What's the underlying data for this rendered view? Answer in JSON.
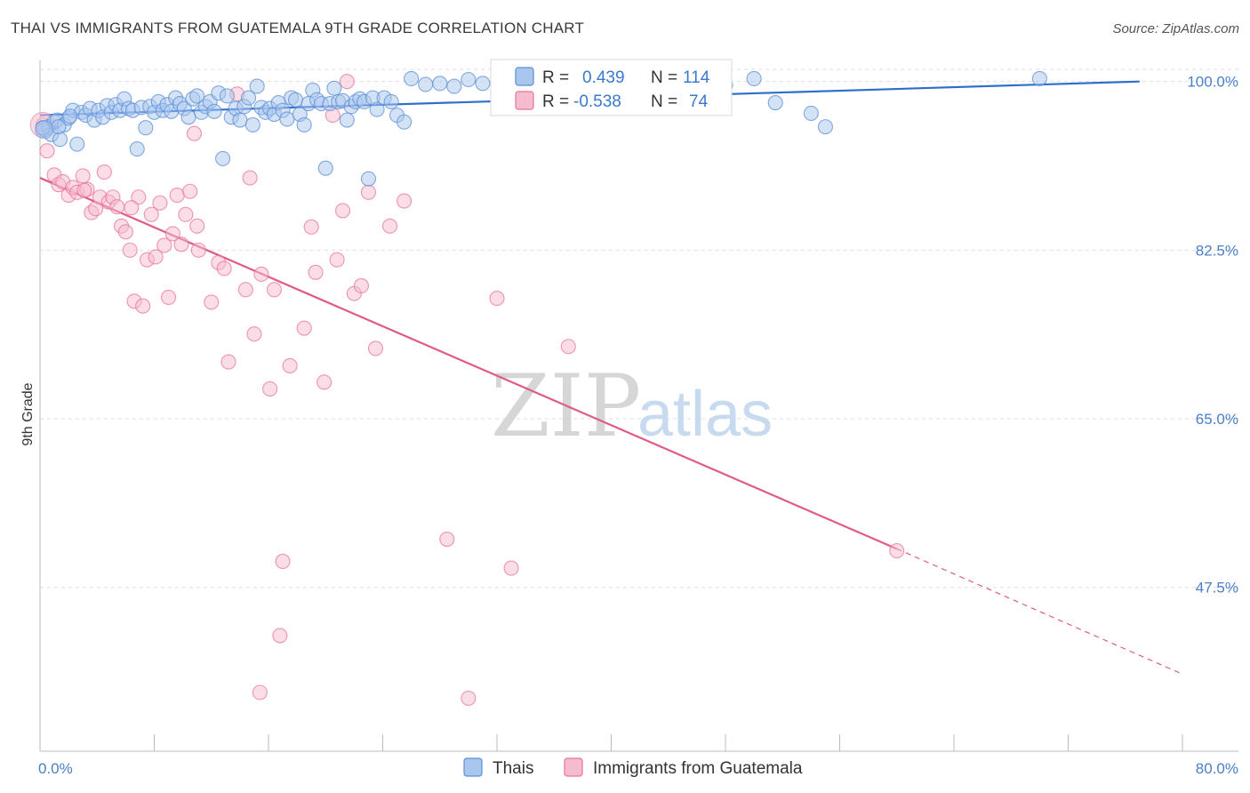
{
  "title": "THAI VS IMMIGRANTS FROM GUATEMALA 9TH GRADE CORRELATION CHART",
  "source": "Source: ZipAtlas.com",
  "watermark": {
    "zip": "ZIP",
    "atlas": "atlas"
  },
  "colors": {
    "thai": "#5b8fd6",
    "thai_fill": "#a9c6ee",
    "guatemala": "#e8749a",
    "guatemala_fill": "#f5bcd0",
    "axis_text": "#4a7fc8",
    "grid": "#dedede"
  },
  "legend": {
    "thai": {
      "r_label": "R =",
      "r_value": "0.439",
      "n_label": "N =",
      "n_value": "114"
    },
    "guatemala": {
      "r_label": "R =",
      "r_value": "-0.538",
      "n_label": "N =",
      "n_value": "74"
    }
  },
  "bottom_legend": {
    "thai": "Thais",
    "guatemala": "Immigrants from Guatemala"
  },
  "chart_data": {
    "type": "scatter",
    "title": "THAI VS IMMIGRANTS FROM GUATEMALA 9TH GRADE CORRELATION CHART",
    "xlabel": "",
    "ylabel": "9th Grade",
    "xlim": [
      0,
      80
    ],
    "ylim": [
      30.5,
      102
    ],
    "x_tick_labels": [
      "0.0%",
      "80.0%"
    ],
    "y_ticks": [
      100.0,
      82.5,
      65.0,
      47.5
    ],
    "y_tick_labels": [
      "100.0%",
      "82.5%",
      "65.0%",
      "47.5%"
    ],
    "grid": "horizontal dashed",
    "legend_position": "top-center",
    "series": [
      {
        "name": "Thais",
        "color": "#5b8fd6",
        "trend": {
          "x": [
            0,
            77
          ],
          "y": [
            96.5,
            100.0
          ],
          "dashed_after": 77,
          "dashed_to_x": 80
        },
        "points": [
          [
            0.3,
            95.0
          ],
          [
            0.6,
            95.3
          ],
          [
            0.8,
            94.5
          ],
          [
            1.0,
            95.8
          ],
          [
            1.2,
            96.0
          ],
          [
            1.4,
            94.0
          ],
          [
            1.7,
            95.5
          ],
          [
            2.0,
            96.2
          ],
          [
            2.3,
            97.0
          ],
          [
            2.6,
            93.5
          ],
          [
            2.9,
            96.8
          ],
          [
            3.2,
            96.5
          ],
          [
            3.5,
            97.2
          ],
          [
            3.8,
            96.0
          ],
          [
            4.1,
            97.0
          ],
          [
            4.4,
            96.3
          ],
          [
            4.7,
            97.5
          ],
          [
            5.0,
            96.8
          ],
          [
            5.3,
            97.6
          ],
          [
            5.6,
            97.0
          ],
          [
            5.9,
            98.2
          ],
          [
            6.2,
            97.2
          ],
          [
            6.5,
            97.0
          ],
          [
            6.8,
            93.0
          ],
          [
            7.1,
            97.3
          ],
          [
            7.4,
            95.2
          ],
          [
            7.7,
            97.4
          ],
          [
            8.0,
            96.8
          ],
          [
            8.3,
            97.9
          ],
          [
            8.6,
            97.0
          ],
          [
            8.9,
            97.6
          ],
          [
            9.2,
            96.9
          ],
          [
            9.5,
            98.3
          ],
          [
            9.8,
            97.7
          ],
          [
            10.1,
            97.2
          ],
          [
            10.4,
            96.3
          ],
          [
            10.7,
            98.2
          ],
          [
            11.0,
            98.5
          ],
          [
            11.3,
            96.8
          ],
          [
            11.6,
            97.4
          ],
          [
            11.9,
            97.9
          ],
          [
            12.2,
            96.9
          ],
          [
            12.5,
            98.8
          ],
          [
            12.8,
            92.0
          ],
          [
            13.1,
            98.5
          ],
          [
            13.4,
            96.3
          ],
          [
            13.7,
            97.2
          ],
          [
            14.0,
            96.0
          ],
          [
            14.3,
            97.4
          ],
          [
            14.6,
            98.3
          ],
          [
            14.9,
            95.5
          ],
          [
            15.2,
            99.5
          ],
          [
            15.5,
            97.3
          ],
          [
            15.8,
            96.8
          ],
          [
            16.1,
            97.2
          ],
          [
            16.4,
            96.6
          ],
          [
            16.7,
            97.8
          ],
          [
            17.0,
            97.0
          ],
          [
            17.3,
            96.1
          ],
          [
            17.6,
            98.3
          ],
          [
            17.9,
            98.1
          ],
          [
            18.2,
            96.6
          ],
          [
            18.5,
            95.5
          ],
          [
            18.8,
            97.7
          ],
          [
            19.1,
            99.1
          ],
          [
            19.4,
            98.1
          ],
          [
            19.7,
            97.7
          ],
          [
            20.0,
            91.0
          ],
          [
            20.3,
            97.7
          ],
          [
            20.6,
            99.3
          ],
          [
            20.9,
            97.9
          ],
          [
            21.2,
            98.0
          ],
          [
            21.5,
            96.0
          ],
          [
            21.8,
            97.4
          ],
          [
            22.1,
            97.9
          ],
          [
            22.4,
            98.2
          ],
          [
            22.7,
            97.9
          ],
          [
            23.0,
            89.9
          ],
          [
            23.3,
            98.3
          ],
          [
            23.6,
            97.1
          ],
          [
            24.1,
            98.3
          ],
          [
            24.6,
            97.9
          ],
          [
            25.0,
            96.5
          ],
          [
            25.5,
            95.8
          ],
          [
            26.0,
            100.3
          ],
          [
            27.0,
            99.7
          ],
          [
            28.0,
            99.8
          ],
          [
            29.0,
            99.5
          ],
          [
            30.0,
            100.2
          ],
          [
            31.0,
            99.8
          ],
          [
            32.5,
            99.6
          ],
          [
            34.0,
            100.1
          ],
          [
            35.0,
            99.5
          ],
          [
            36.0,
            99.7
          ],
          [
            37.0,
            99.2
          ],
          [
            38.0,
            99.4
          ],
          [
            39.0,
            99.0
          ],
          [
            40.0,
            99.4
          ],
          [
            41.0,
            100.2
          ],
          [
            42.0,
            100.0
          ],
          [
            43.0,
            99.0
          ],
          [
            44.0,
            99.3
          ],
          [
            45.0,
            99.6
          ],
          [
            46.0,
            99.0
          ],
          [
            47.0,
            99.1
          ],
          [
            48.0,
            99.6
          ],
          [
            50.0,
            100.3
          ],
          [
            51.5,
            97.8
          ],
          [
            54.0,
            96.7
          ],
          [
            55.0,
            95.3
          ],
          [
            70.0,
            100.3
          ],
          [
            0.2,
            95.2
          ],
          [
            1.3,
            95.3
          ],
          [
            2.1,
            96.4
          ]
        ]
      },
      {
        "name": "Immigrants from Guatemala",
        "color": "#e8749a",
        "trend": {
          "x": [
            0,
            60
          ],
          "y": [
            90.0,
            51.5
          ],
          "dashed_after": 60,
          "dashed_to_x": 80,
          "dashed_to_y": 38.5
        },
        "points": [
          [
            0.2,
            95.5
          ],
          [
            0.5,
            92.8
          ],
          [
            1.0,
            90.3
          ],
          [
            1.3,
            89.3
          ],
          [
            1.6,
            89.6
          ],
          [
            2.0,
            88.2
          ],
          [
            2.3,
            89.0
          ],
          [
            2.6,
            88.5
          ],
          [
            3.0,
            90.2
          ],
          [
            3.3,
            88.8
          ],
          [
            3.6,
            86.4
          ],
          [
            3.9,
            86.8
          ],
          [
            4.2,
            88.0
          ],
          [
            4.5,
            90.6
          ],
          [
            4.8,
            87.5
          ],
          [
            5.1,
            88.0
          ],
          [
            5.4,
            87.0
          ],
          [
            5.7,
            85.0
          ],
          [
            6.0,
            84.4
          ],
          [
            6.3,
            82.5
          ],
          [
            6.6,
            77.2
          ],
          [
            6.9,
            88.0
          ],
          [
            7.2,
            76.7
          ],
          [
            7.5,
            81.5
          ],
          [
            7.8,
            86.2
          ],
          [
            8.1,
            81.8
          ],
          [
            8.4,
            87.4
          ],
          [
            8.7,
            83.0
          ],
          [
            9.0,
            77.6
          ],
          [
            9.3,
            84.2
          ],
          [
            9.6,
            88.2
          ],
          [
            9.9,
            83.1
          ],
          [
            10.2,
            86.2
          ],
          [
            10.5,
            88.6
          ],
          [
            10.8,
            94.6
          ],
          [
            11.1,
            82.5
          ],
          [
            12.0,
            77.1
          ],
          [
            12.5,
            81.2
          ],
          [
            12.9,
            80.6
          ],
          [
            13.2,
            70.9
          ],
          [
            13.8,
            98.7
          ],
          [
            14.4,
            78.4
          ],
          [
            14.7,
            90.0
          ],
          [
            15.0,
            73.8
          ],
          [
            15.5,
            80.0
          ],
          [
            16.1,
            68.1
          ],
          [
            16.4,
            78.4
          ],
          [
            17.0,
            50.2
          ],
          [
            16.8,
            42.5
          ],
          [
            17.5,
            70.5
          ],
          [
            18.5,
            74.4
          ],
          [
            19.0,
            84.9
          ],
          [
            19.3,
            80.2
          ],
          [
            19.9,
            68.8
          ],
          [
            20.5,
            96.5
          ],
          [
            20.8,
            81.5
          ],
          [
            21.2,
            86.6
          ],
          [
            21.5,
            100.0
          ],
          [
            22.0,
            78.0
          ],
          [
            22.5,
            78.8
          ],
          [
            23.5,
            72.3
          ],
          [
            25.5,
            87.6
          ],
          [
            28.5,
            52.5
          ],
          [
            30.0,
            36.0
          ],
          [
            32.0,
            77.5
          ],
          [
            33.0,
            49.5
          ],
          [
            37.0,
            72.5
          ],
          [
            60.0,
            51.3
          ],
          [
            15.4,
            36.6
          ],
          [
            23.0,
            88.5
          ],
          [
            11.0,
            85.0
          ],
          [
            6.4,
            86.9
          ],
          [
            3.1,
            88.7
          ],
          [
            24.5,
            85.0
          ]
        ]
      }
    ]
  }
}
